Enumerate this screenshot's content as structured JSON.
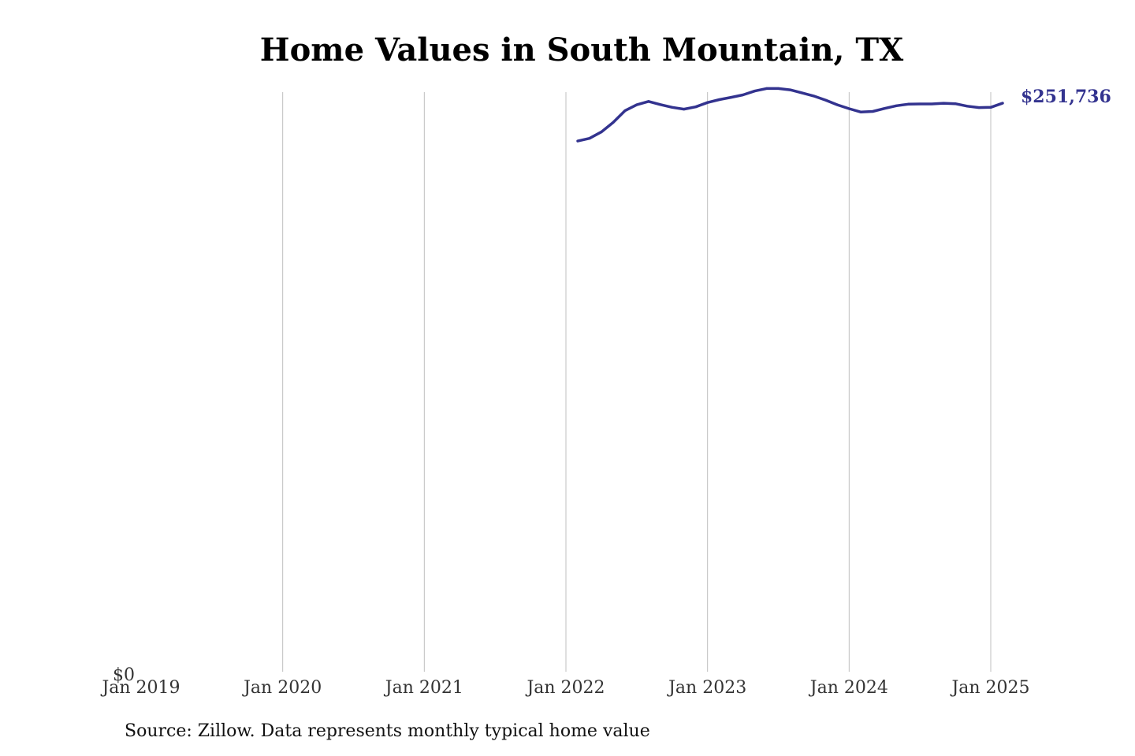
{
  "source_note": "Source: Zillow. Data represents monthly typical home value",
  "chart_data": {
    "type": "line",
    "title": "Home Values in South Mountain, TX",
    "xlabel": "",
    "ylabel": "",
    "x_ticks": [
      "Jan 2019",
      "Jan 2020",
      "Jan 2021",
      "Jan 2022",
      "Jan 2023",
      "Jan 2024",
      "Jan 2025"
    ],
    "y_ticks": [
      "$0"
    ],
    "ylim": [
      0,
      260000
    ],
    "grid": "vertical",
    "line_color": "#33338f",
    "end_label": "$251,736",
    "series": [
      {
        "x": [
          "2022-02",
          "2022-03",
          "2022-04",
          "2022-05",
          "2022-06",
          "2022-07",
          "2022-08",
          "2022-09",
          "2022-10",
          "2022-11",
          "2022-12",
          "2023-01",
          "2023-02",
          "2023-03",
          "2023-04",
          "2023-05",
          "2023-06",
          "2023-07",
          "2023-08",
          "2023-09",
          "2023-10",
          "2023-11",
          "2023-12",
          "2024-01",
          "2024-02",
          "2024-03",
          "2024-04",
          "2024-05",
          "2024-06",
          "2024-07",
          "2024-08",
          "2024-09",
          "2024-10",
          "2024-11",
          "2024-12",
          "2025-01",
          "2025-02"
        ],
        "values": [
          235000,
          236200,
          239000,
          243200,
          248400,
          251000,
          252500,
          251100,
          249900,
          249100,
          250100,
          252000,
          253300,
          254300,
          255400,
          257100,
          258200,
          258200,
          257600,
          256300,
          254900,
          253100,
          251000,
          249300,
          247800,
          248100,
          249400,
          250600,
          251300,
          251400,
          251400,
          251700,
          251500,
          250400,
          249800,
          249900,
          251736
        ]
      }
    ]
  }
}
